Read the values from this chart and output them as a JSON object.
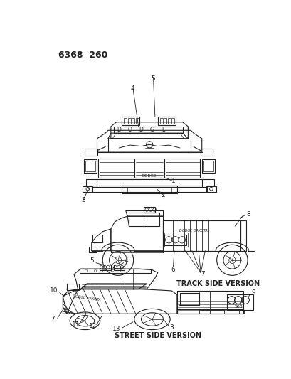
{
  "page_number": "6368  260",
  "background_color": "#ffffff",
  "line_color": "#222222",
  "text_color": "#222222",
  "label_fontsize": 6.5,
  "track_side_label": "TRACK SIDE VERSION",
  "street_side_label": "STREET SIDE VERSION",
  "fig_width": 4.1,
  "fig_height": 5.33,
  "dpi": 100
}
